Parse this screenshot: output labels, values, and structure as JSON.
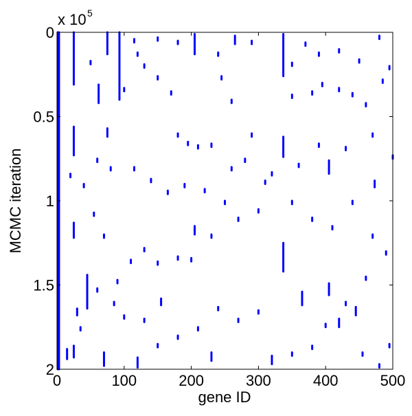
{
  "chart_data": {
    "type": "segment",
    "xlabel": "gene ID",
    "ylabel": "MCMC iteration",
    "y_multiplier": {
      "base": "x 10",
      "exponent": "5"
    },
    "xlim": [
      0,
      500
    ],
    "xticks": [
      0,
      100,
      200,
      300,
      400,
      500
    ],
    "ylim": [
      0,
      2
    ],
    "yticks": [
      0,
      0.5,
      1,
      1.5,
      2
    ],
    "y_reversed": true,
    "grid": false,
    "color": "#0000ff",
    "x": [
      1,
      3,
      25,
      25,
      25,
      25,
      75,
      75,
      93,
      62,
      45,
      205,
      205,
      337,
      337,
      337,
      365,
      405,
      405,
      70,
      155,
      473,
      15,
      265,
      230,
      320,
      445,
      420,
      120,
      30,
      50,
      100,
      130,
      150,
      170,
      180,
      195,
      210,
      230,
      245,
      260,
      290,
      310,
      320,
      350,
      380,
      395,
      420,
      440,
      460,
      485,
      495,
      470,
      430,
      390,
      360,
      300,
      270,
      250,
      230,
      200,
      180,
      150,
      130,
      110,
      90,
      70,
      55,
      40,
      20,
      60,
      80,
      115,
      140,
      165,
      190,
      220,
      260,
      280,
      350,
      380,
      410,
      440,
      470,
      490,
      460,
      430,
      400,
      380,
      350,
      300,
      270,
      240,
      210,
      180,
      150,
      130,
      100,
      85,
      60,
      35,
      480,
      495,
      455,
      150,
      180,
      240,
      290,
      370,
      390,
      420,
      450,
      480,
      120,
      115,
      350,
      500
    ],
    "y_start": [
      0,
      0,
      0,
      0.56,
      1.13,
      1.86,
      0,
      0.57,
      0,
      0.31,
      1.44,
      0.01,
      1.15,
      0.01,
      0.62,
      1.25,
      1.54,
      0.76,
      1.49,
      1.9,
      1.58,
      0.88,
      1.88,
      0.02,
      1.9,
      1.92,
      1.63,
      1.7,
      1.93,
      1.64,
      0.17,
      0.33,
      0.19,
      0.26,
      0.35,
      0.6,
      0.65,
      0.67,
      0.66,
      0.26,
      0.4,
      0.6,
      0.88,
      0.83,
      0.37,
      0.35,
      0.3,
      0.33,
      0.36,
      0.42,
      0.28,
      0.2,
      0.6,
      0.68,
      0.66,
      0.78,
      1.05,
      1.1,
      1.0,
      1.2,
      1.34,
      1.33,
      1.36,
      1.28,
      1.35,
      1.47,
      1.2,
      1.07,
      0.9,
      0.84,
      0.75,
      0.8,
      0.8,
      0.87,
      0.94,
      0.9,
      0.93,
      0.8,
      0.75,
      1.0,
      1.1,
      1.15,
      1.0,
      1.2,
      1.3,
      1.45,
      1.6,
      1.73,
      1.86,
      1.9,
      1.65,
      1.7,
      1.63,
      1.75,
      1.8,
      1.85,
      1.7,
      1.68,
      1.6,
      1.52,
      1.75,
      1.97,
      1.85,
      1.9,
      0.03,
      0.05,
      0.12,
      0.05,
      0.06,
      0.12,
      0.1,
      0.16,
      0.02,
      0.12,
      0.04,
      0.18,
      0.73
    ],
    "y_end": [
      2,
      2,
      0.31,
      0.73,
      1.22,
      1.93,
      0.13,
      0.62,
      0.4,
      0.42,
      1.64,
      0.13,
      1.2,
      0.26,
      0.74,
      1.42,
      1.62,
      0.84,
      1.56,
      1.98,
      1.62,
      0.92,
      1.94,
      0.07,
      1.95,
      1.97,
      1.68,
      1.75,
      1.99,
      1.68,
      0.19,
      0.35,
      0.21,
      0.28,
      0.37,
      0.62,
      0.67,
      0.69,
      0.68,
      0.28,
      0.42,
      0.62,
      0.9,
      0.85,
      0.39,
      0.37,
      0.32,
      0.35,
      0.38,
      0.44,
      0.3,
      0.22,
      0.62,
      0.7,
      0.68,
      0.8,
      1.07,
      1.12,
      1.02,
      1.22,
      1.36,
      1.35,
      1.38,
      1.3,
      1.37,
      1.49,
      1.22,
      1.09,
      0.92,
      0.86,
      0.77,
      0.82,
      0.82,
      0.89,
      0.96,
      0.92,
      0.95,
      0.82,
      0.77,
      1.02,
      1.12,
      1.17,
      1.02,
      1.22,
      1.32,
      1.47,
      1.62,
      1.75,
      1.88,
      1.92,
      1.67,
      1.72,
      1.65,
      1.77,
      1.82,
      1.87,
      1.72,
      1.7,
      1.62,
      1.54,
      1.77,
      1.99,
      1.87,
      1.92,
      0.05,
      0.07,
      0.14,
      0.07,
      0.08,
      0.14,
      0.12,
      0.18,
      0.04,
      0.14,
      0.06,
      0.2,
      0.75
    ]
  }
}
